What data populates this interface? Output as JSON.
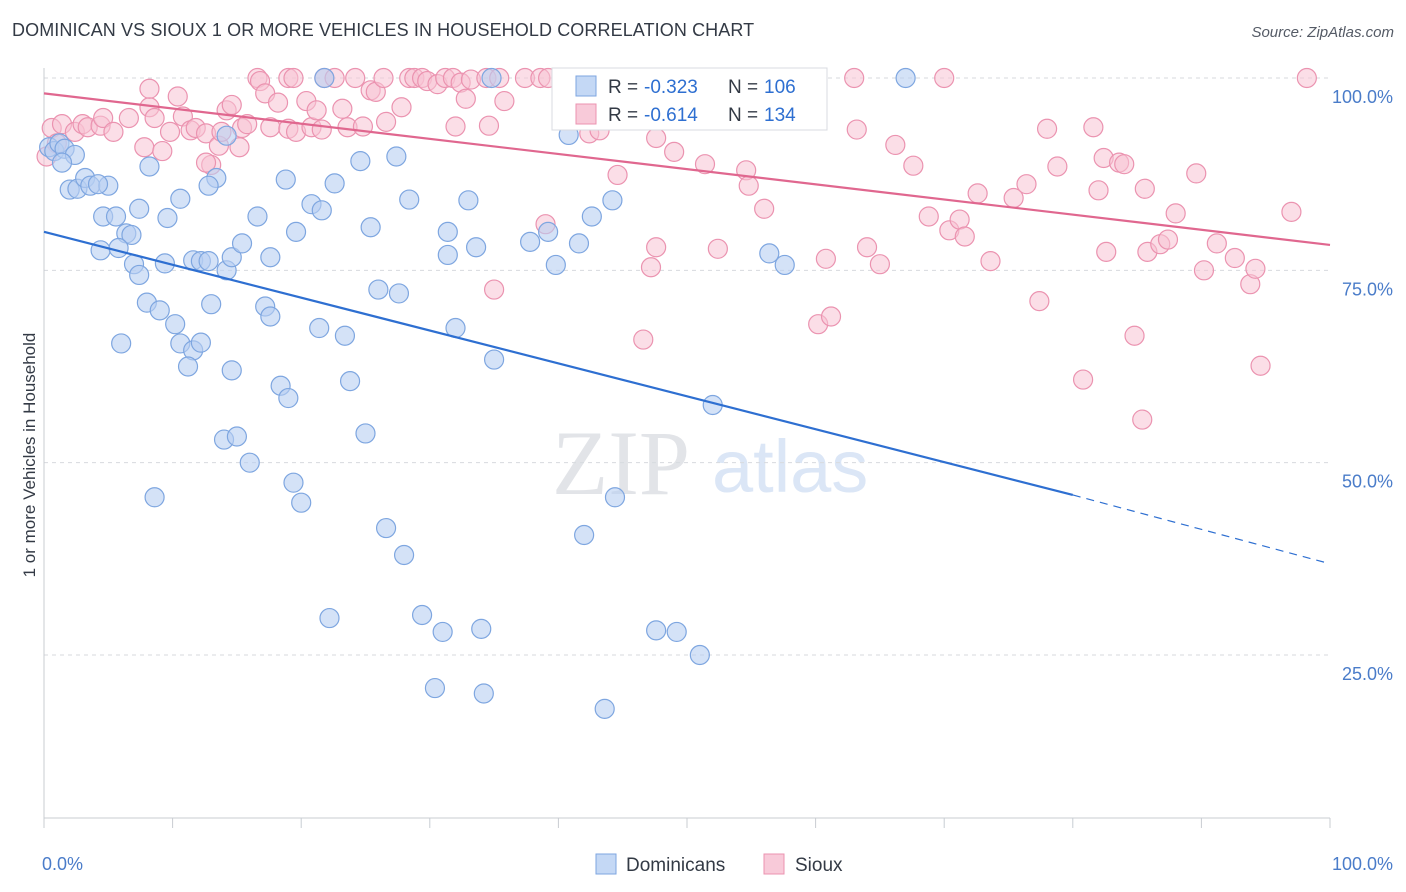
{
  "title": "DOMINICAN VS SIOUX 1 OR MORE VEHICLES IN HOUSEHOLD CORRELATION CHART",
  "source": "Source: ZipAtlas.com",
  "watermark": {
    "zip": "ZIP",
    "atlas": "atlas"
  },
  "legend_top": [
    {
      "r_label": "R =",
      "r_value": "-0.323",
      "n_label": "N =",
      "n_value": "106",
      "color": "#8ab0e8"
    },
    {
      "r_label": "R =",
      "r_value": "-0.614",
      "n_label": "N =",
      "n_value": "134",
      "color": "#f0a0b8"
    }
  ],
  "legend_bottom": [
    {
      "label": "Dominicans",
      "color": "#8ab0e8"
    },
    {
      "label": "Sioux",
      "color": "#f0a0b8"
    }
  ],
  "chart_data": {
    "type": "scatter",
    "title": "DOMINICAN VS SIOUX 1 OR MORE VEHICLES IN HOUSEHOLD CORRELATION CHART",
    "xlabel": "",
    "ylabel": "1 or more Vehicles in Household",
    "xlim": [
      0,
      100
    ],
    "ylim": [
      0,
      102
    ],
    "x_tick_labels": [
      "0.0%",
      "100.0%"
    ],
    "y_ticks": [
      25,
      50,
      75,
      100
    ],
    "y_tick_labels": [
      "25.0%",
      "50.0%",
      "75.0%",
      "100.0%"
    ],
    "grid": "horizontal dashed",
    "legend": "top-center",
    "colors": {
      "dominicans_fill": "#b8cff2",
      "dominicans_stroke": "#7ea6e0",
      "dominicans_line": "#2e6fd1",
      "sioux_fill": "#f7c3d3",
      "sioux_stroke": "#eb93b0",
      "sioux_line": "#e0678f"
    },
    "series": [
      {
        "name": "Dominicans",
        "r": -0.323,
        "n": 106,
        "trend": {
          "x0": 0,
          "y0": 80.0,
          "x1": 80,
          "y1": 45.8,
          "dash_to_x": 100,
          "dash_to_y": 37.0
        },
        "points": [
          [
            0.4,
            91
          ],
          [
            0.8,
            90.5
          ],
          [
            1.2,
            91.5
          ],
          [
            1.6,
            90.8
          ],
          [
            2.4,
            90
          ],
          [
            1.4,
            89
          ],
          [
            2.0,
            85.5
          ],
          [
            2.6,
            85.6
          ],
          [
            3.2,
            87
          ],
          [
            3.6,
            86
          ],
          [
            5.0,
            86
          ],
          [
            4.2,
            86.2
          ],
          [
            4.6,
            82
          ],
          [
            5.6,
            82
          ],
          [
            6.4,
            79.8
          ],
          [
            6.8,
            79.6
          ],
          [
            4.4,
            77.6
          ],
          [
            5.8,
            77.9
          ],
          [
            7.0,
            75.8
          ],
          [
            7.4,
            74.4
          ],
          [
            9.4,
            75.9
          ],
          [
            8.2,
            88.5
          ],
          [
            7.4,
            83
          ],
          [
            9.6,
            81.8
          ],
          [
            10.6,
            84.3
          ],
          [
            11.6,
            76.3
          ],
          [
            12.2,
            76.2
          ],
          [
            12.8,
            76.2
          ],
          [
            13.4,
            87
          ],
          [
            12.8,
            86
          ],
          [
            14.2,
            92.5
          ],
          [
            14.2,
            75
          ],
          [
            14.6,
            76.7
          ],
          [
            15.4,
            78.5
          ],
          [
            16.6,
            82
          ],
          [
            17.6,
            76.7
          ],
          [
            18.8,
            86.8
          ],
          [
            19.6,
            80
          ],
          [
            20.8,
            83.6
          ],
          [
            21.6,
            82.8
          ],
          [
            22.6,
            86.3
          ],
          [
            24.6,
            89.2
          ],
          [
            25.4,
            80.6
          ],
          [
            27.4,
            89.8
          ],
          [
            28.4,
            84.2
          ],
          [
            31.4,
            80
          ],
          [
            31.4,
            77
          ],
          [
            33.0,
            84.1
          ],
          [
            33.6,
            78
          ],
          [
            34.8,
            100
          ],
          [
            21.8,
            100
          ],
          [
            37.8,
            78.7
          ],
          [
            39.2,
            80
          ],
          [
            39.8,
            75.7
          ],
          [
            40.8,
            92.6
          ],
          [
            41.6,
            78.5
          ],
          [
            42.6,
            82
          ],
          [
            44.2,
            84.1
          ],
          [
            56.4,
            77.2
          ],
          [
            67.0,
            100
          ],
          [
            57.6,
            75.7
          ],
          [
            8.0,
            70.8
          ],
          [
            9.0,
            69.8
          ],
          [
            10.2,
            68
          ],
          [
            10.6,
            65.5
          ],
          [
            11.6,
            64.6
          ],
          [
            11.2,
            62.5
          ],
          [
            12.2,
            65.6
          ],
          [
            13.0,
            70.6
          ],
          [
            14.6,
            62
          ],
          [
            17.2,
            70.3
          ],
          [
            17.6,
            69
          ],
          [
            18.4,
            60
          ],
          [
            19.0,
            58.4
          ],
          [
            21.4,
            67.5
          ],
          [
            23.4,
            66.5
          ],
          [
            23.8,
            60.6
          ],
          [
            26.0,
            72.5
          ],
          [
            27.6,
            72
          ],
          [
            32.0,
            67.5
          ],
          [
            35.0,
            63.4
          ],
          [
            52.0,
            57.5
          ],
          [
            6.0,
            65.5
          ],
          [
            14.0,
            53
          ],
          [
            15.0,
            53.4
          ],
          [
            16.0,
            50
          ],
          [
            8.6,
            45.5
          ],
          [
            19.4,
            47.4
          ],
          [
            20.0,
            44.8
          ],
          [
            25.0,
            53.8
          ],
          [
            26.6,
            41.5
          ],
          [
            28.0,
            38
          ],
          [
            44.4,
            45.5
          ],
          [
            42.0,
            40.6
          ],
          [
            22.2,
            29.8
          ],
          [
            29.4,
            30.2
          ],
          [
            31.0,
            28
          ],
          [
            34.0,
            28.4
          ],
          [
            47.6,
            28.2
          ],
          [
            49.2,
            28
          ],
          [
            51.0,
            25
          ],
          [
            30.4,
            20.7
          ],
          [
            34.2,
            20
          ],
          [
            43.6,
            18
          ]
        ]
      },
      {
        "name": "Sioux",
        "r": -0.614,
        "n": 134,
        "trend": {
          "x0": 0,
          "y0": 98.0,
          "x1": 100,
          "y1": 78.3
        },
        "points": [
          [
            0.2,
            89.8
          ],
          [
            0.6,
            93.5
          ],
          [
            1.0,
            91.5
          ],
          [
            1.4,
            94
          ],
          [
            2.4,
            93
          ],
          [
            3.0,
            94
          ],
          [
            3.4,
            93.6
          ],
          [
            4.4,
            93.8
          ],
          [
            4.6,
            94.8
          ],
          [
            5.4,
            93
          ],
          [
            6.6,
            94.8
          ],
          [
            7.8,
            91
          ],
          [
            8.2,
            96.2
          ],
          [
            8.2,
            98.6
          ],
          [
            8.6,
            94.8
          ],
          [
            9.2,
            90.5
          ],
          [
            9.8,
            93
          ],
          [
            10.4,
            97.6
          ],
          [
            10.8,
            95
          ],
          [
            11.4,
            93.2
          ],
          [
            11.8,
            93.5
          ],
          [
            12.6,
            92.8
          ],
          [
            13.0,
            88.7
          ],
          [
            12.6,
            89
          ],
          [
            13.6,
            91.2
          ],
          [
            13.8,
            93
          ],
          [
            14.2,
            95.8
          ],
          [
            14.6,
            96.5
          ],
          [
            15.2,
            91
          ],
          [
            15.4,
            93.5
          ],
          [
            15.8,
            94
          ],
          [
            16.6,
            100
          ],
          [
            16.8,
            99.6
          ],
          [
            17.2,
            98
          ],
          [
            17.6,
            93.6
          ],
          [
            18.2,
            96.8
          ],
          [
            19.0,
            93.4
          ],
          [
            19.0,
            100
          ],
          [
            19.4,
            100
          ],
          [
            19.6,
            93
          ],
          [
            20.4,
            97
          ],
          [
            20.8,
            93.6
          ],
          [
            21.2,
            95.8
          ],
          [
            21.6,
            93.3
          ],
          [
            21.8,
            100
          ],
          [
            22.6,
            100
          ],
          [
            23.2,
            96
          ],
          [
            23.6,
            93.6
          ],
          [
            24.2,
            100
          ],
          [
            24.8,
            93.7
          ],
          [
            25.4,
            98.4
          ],
          [
            25.8,
            98.2
          ],
          [
            26.4,
            100
          ],
          [
            26.6,
            94.3
          ],
          [
            27.8,
            96.2
          ],
          [
            28.4,
            100
          ],
          [
            28.8,
            100
          ],
          [
            29.4,
            100
          ],
          [
            29.8,
            99.6
          ],
          [
            30.6,
            99.2
          ],
          [
            31.2,
            100
          ],
          [
            31.8,
            100
          ],
          [
            32.0,
            93.7
          ],
          [
            32.4,
            99.4
          ],
          [
            32.8,
            97.3
          ],
          [
            33.2,
            99.8
          ],
          [
            34.4,
            100
          ],
          [
            34.6,
            93.8
          ],
          [
            35.4,
            100
          ],
          [
            35.8,
            97
          ],
          [
            37.4,
            100
          ],
          [
            38.6,
            100
          ],
          [
            39.2,
            100
          ],
          [
            40.6,
            100
          ],
          [
            41.2,
            96.2
          ],
          [
            42.4,
            92.8
          ],
          [
            43.2,
            93.2
          ],
          [
            44.0,
            95
          ],
          [
            44.6,
            87.4
          ],
          [
            45.6,
            100
          ],
          [
            47.4,
            100
          ],
          [
            47.6,
            92.2
          ],
          [
            49.0,
            90.4
          ],
          [
            51.4,
            88.8
          ],
          [
            52.4,
            77.8
          ],
          [
            54.6,
            88
          ],
          [
            54.8,
            86
          ],
          [
            56.0,
            83
          ],
          [
            57.6,
            94.6
          ],
          [
            59.0,
            94.8
          ],
          [
            60.2,
            68
          ],
          [
            61.2,
            69
          ],
          [
            63.0,
            100
          ],
          [
            63.2,
            93.3
          ],
          [
            64.0,
            78
          ],
          [
            65.0,
            75.8
          ],
          [
            66.2,
            91.3
          ],
          [
            67.6,
            88.6
          ],
          [
            68.8,
            82
          ],
          [
            70.0,
            100
          ],
          [
            70.4,
            80.2
          ],
          [
            71.2,
            81.6
          ],
          [
            71.6,
            79.4
          ],
          [
            72.6,
            85
          ],
          [
            73.6,
            76.2
          ],
          [
            75.4,
            84.4
          ],
          [
            76.4,
            86.2
          ],
          [
            77.4,
            71
          ],
          [
            78.0,
            93.4
          ],
          [
            78.8,
            88.5
          ],
          [
            80.8,
            60.8
          ],
          [
            81.6,
            93.6
          ],
          [
            82.0,
            85.4
          ],
          [
            82.4,
            89.6
          ],
          [
            82.6,
            77.4
          ],
          [
            83.6,
            89
          ],
          [
            84.0,
            88.8
          ],
          [
            84.8,
            66.5
          ],
          [
            85.4,
            55.6
          ],
          [
            85.6,
            85.6
          ],
          [
            85.8,
            77.4
          ],
          [
            86.8,
            78.4
          ],
          [
            87.4,
            79
          ],
          [
            88.0,
            82.4
          ],
          [
            89.6,
            87.6
          ],
          [
            90.2,
            75
          ],
          [
            91.2,
            78.5
          ],
          [
            92.6,
            76.6
          ],
          [
            93.8,
            73.2
          ],
          [
            94.2,
            75.2
          ],
          [
            94.6,
            62.6
          ],
          [
            97.0,
            82.6
          ],
          [
            98.2,
            100
          ],
          [
            60.8,
            76.5
          ],
          [
            47.2,
            75.4
          ],
          [
            39.0,
            81
          ],
          [
            35.0,
            72.5
          ],
          [
            46.6,
            66
          ],
          [
            47.6,
            78
          ]
        ]
      }
    ]
  }
}
